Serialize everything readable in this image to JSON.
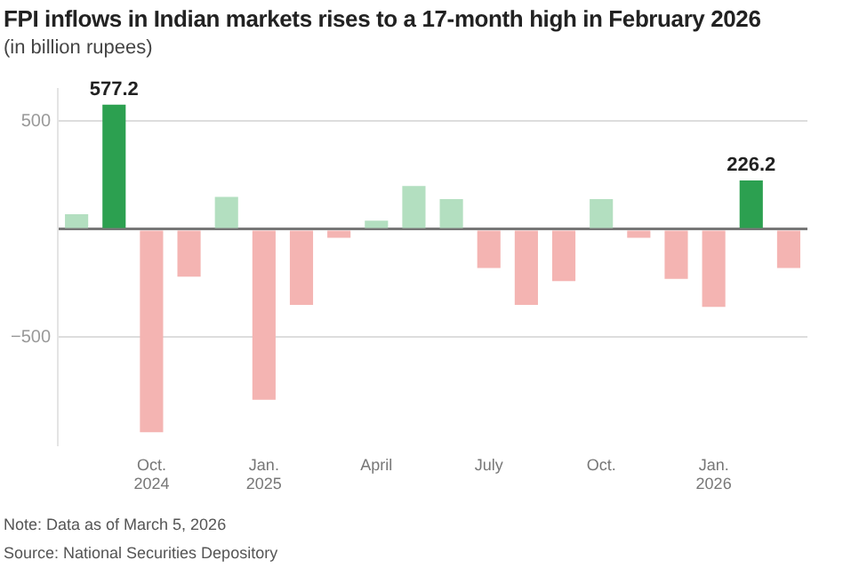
{
  "chart_data": {
    "type": "bar",
    "title": "FPI inflows in Indian markets rises to a 17-month high in February 2026",
    "subtitle": "(in billion rupees)",
    "categories": [
      null,
      null,
      "Oct.\n2024",
      null,
      null,
      "Jan.\n2025",
      null,
      null,
      "April",
      null,
      null,
      "July",
      null,
      null,
      "Oct.",
      null,
      null,
      "Jan.\n2026",
      null,
      null
    ],
    "values": [
      70,
      577.2,
      -940,
      -220,
      150,
      -790,
      -350,
      -40,
      40,
      200,
      140,
      -180,
      -350,
      -240,
      140,
      -40,
      -230,
      -360,
      226.2,
      -180
    ],
    "colors": [
      "#b3dfc0",
      "#2ca050",
      "#f4b4b2",
      "#f4b4b2",
      "#b3dfc0",
      "#f4b4b2",
      "#f4b4b2",
      "#f4b4b2",
      "#b3dfc0",
      "#b3dfc0",
      "#b3dfc0",
      "#f4b4b2",
      "#f4b4b2",
      "#f4b4b2",
      "#b3dfc0",
      "#f4b4b2",
      "#f4b4b2",
      "#f4b4b2",
      "#2ca050",
      "#f4b4b2"
    ],
    "value_labels": [
      null,
      "577.2",
      null,
      null,
      null,
      null,
      null,
      null,
      null,
      null,
      null,
      null,
      null,
      null,
      null,
      null,
      null,
      null,
      "226.2",
      null
    ],
    "ylim": [
      -1000,
      650
    ],
    "yticks": [
      -500,
      {
        "value": 0,
        "label": null
      },
      500
    ],
    "grid": "y",
    "legend": false,
    "annotations": [
      "Note: Data as of March 5, 2026",
      "Source: National Securities Depository"
    ]
  }
}
